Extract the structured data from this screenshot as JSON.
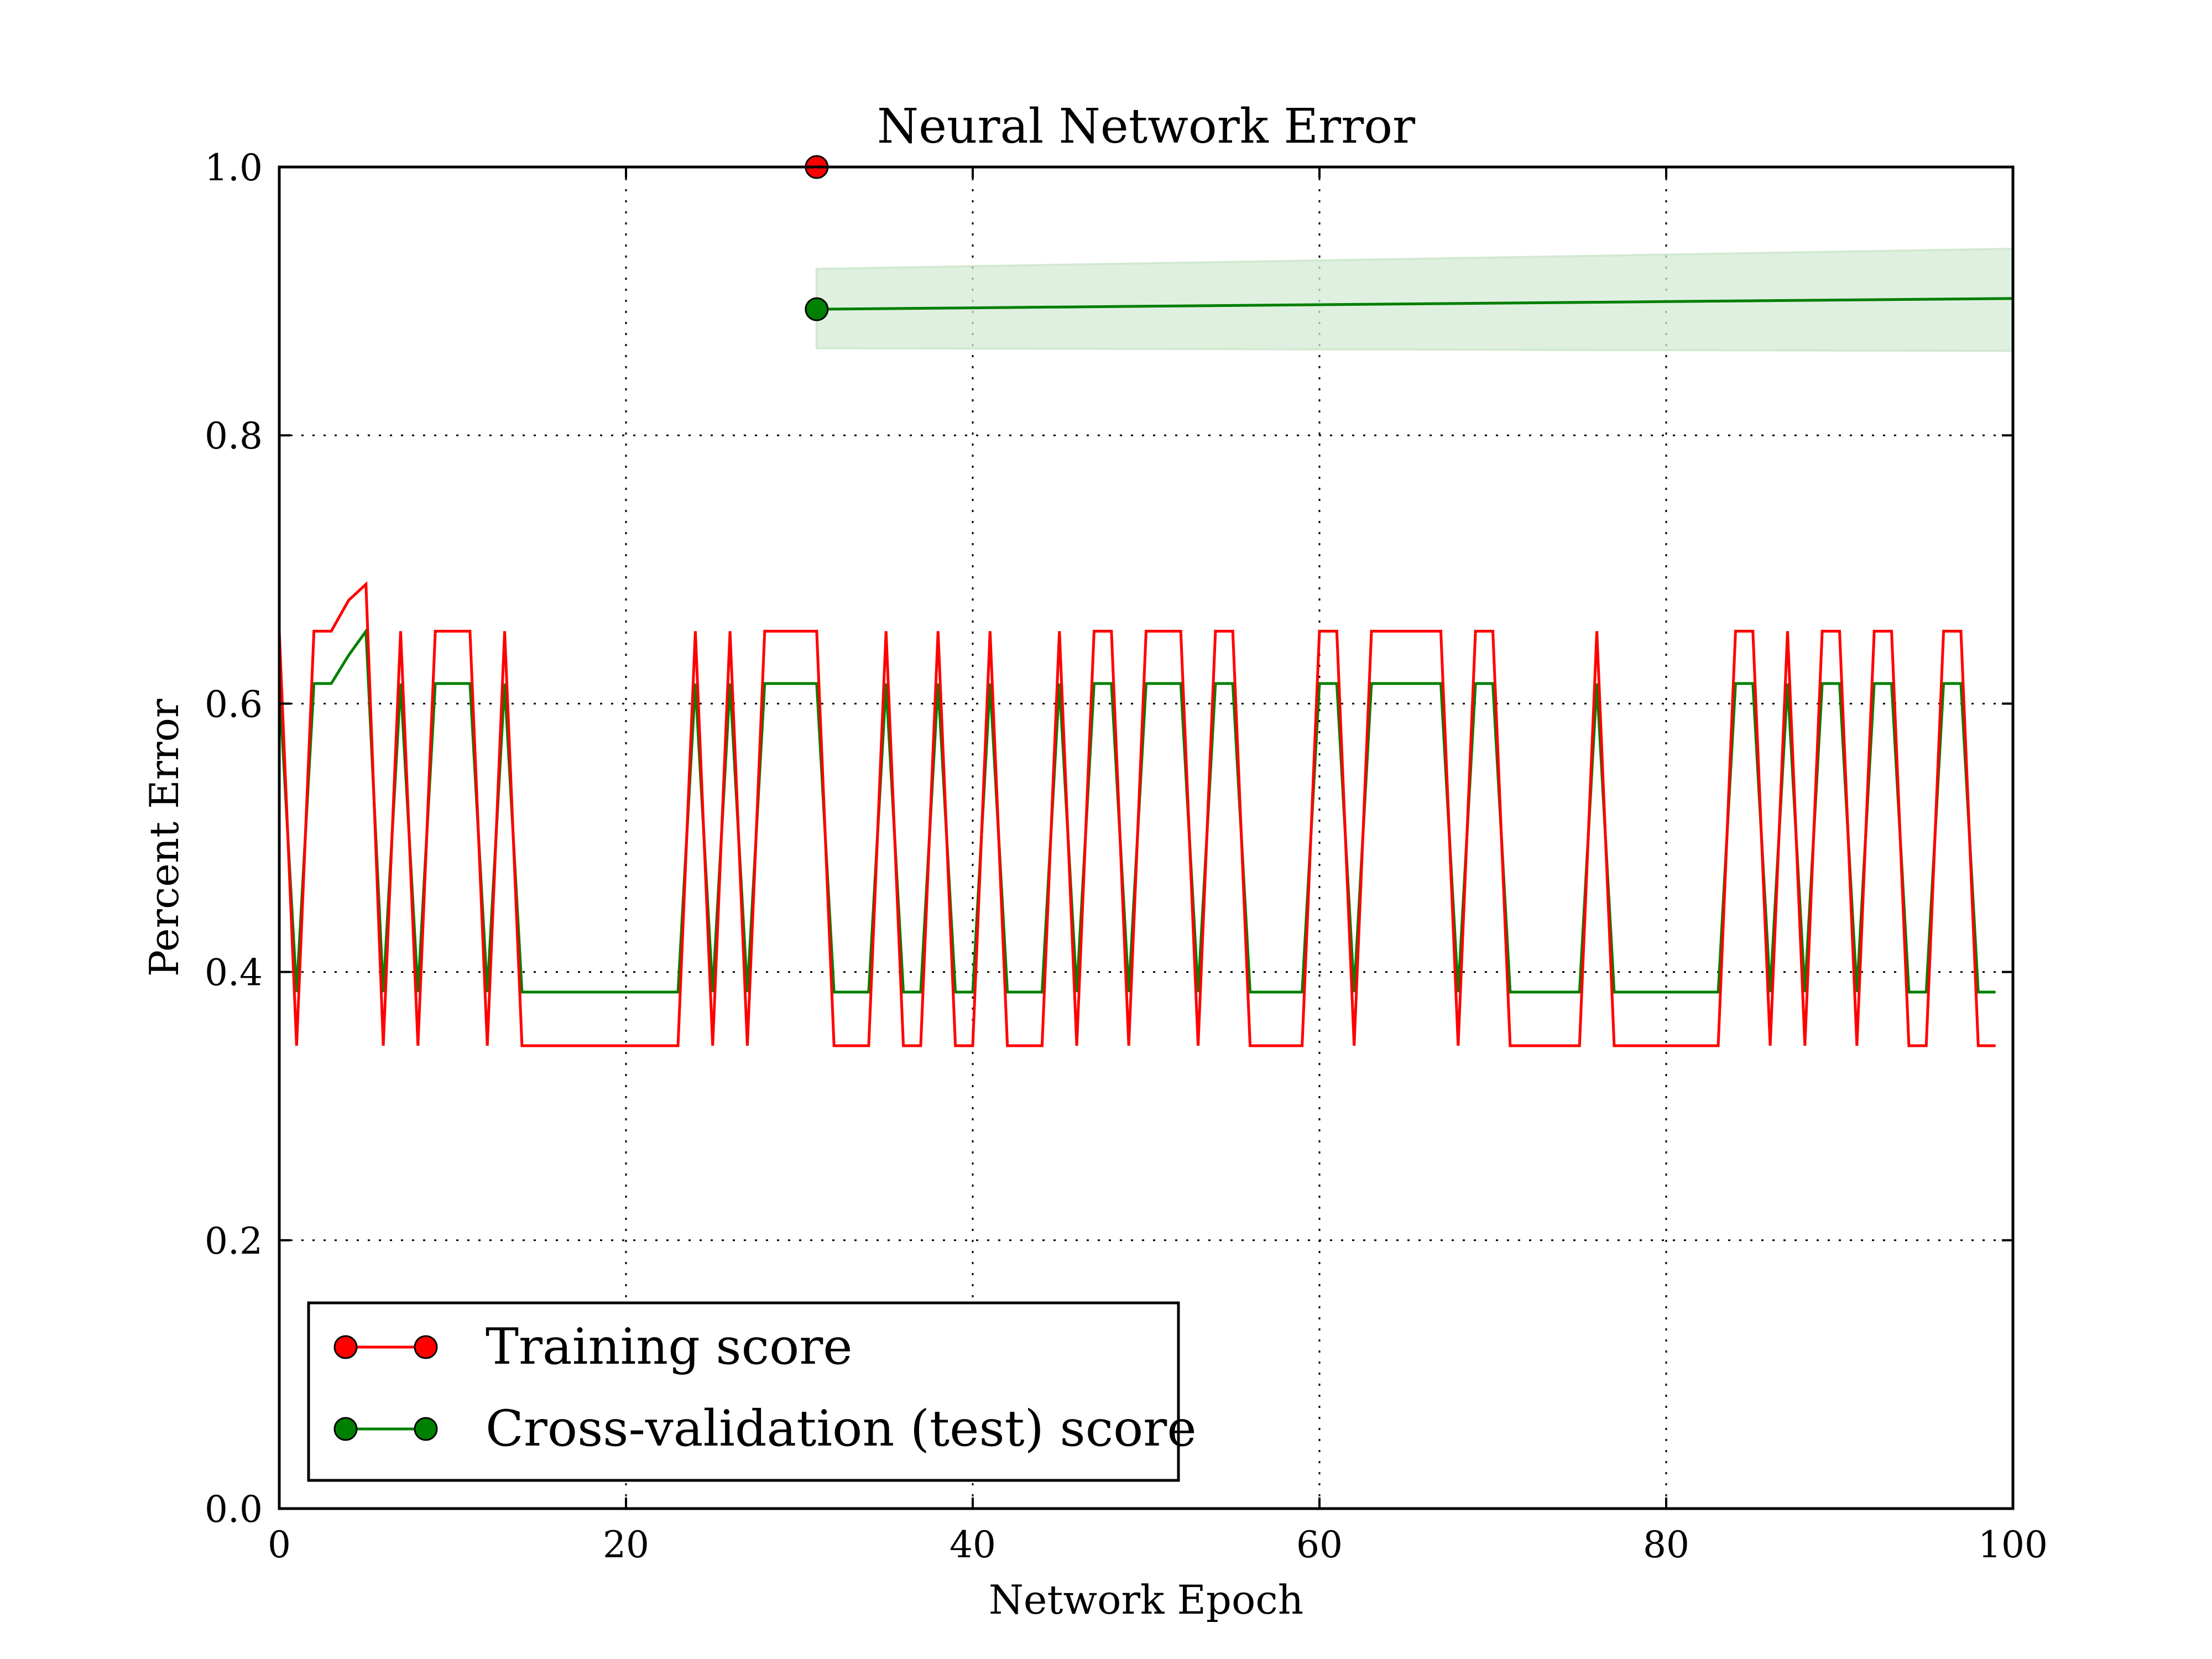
{
  "chart_data": {
    "type": "line",
    "title": "Neural Network Error",
    "xlabel": "Network Epoch",
    "ylabel": "Percent Error",
    "xlim": [
      0,
      100
    ],
    "ylim": [
      0.0,
      1.0
    ],
    "x_ticks": [
      0,
      20,
      40,
      60,
      80,
      100
    ],
    "x_tick_labels": [
      "0",
      "20",
      "40",
      "60",
      "80",
      "100"
    ],
    "y_ticks": [
      0.0,
      0.2,
      0.4,
      0.6,
      0.8,
      1.0
    ],
    "y_tick_labels": [
      "0.0",
      "0.2",
      "0.4",
      "0.6",
      "0.8",
      "1.0"
    ],
    "grid": true,
    "legend_position": "lower-left",
    "series": [
      {
        "name": "Training score",
        "color": "#ff0000",
        "marker_color": "#ff0000",
        "x": [
          0,
          1,
          2,
          3,
          4,
          5,
          6,
          7,
          8,
          9,
          10,
          11,
          12,
          13,
          14,
          15,
          16,
          17,
          18,
          19,
          20,
          21,
          22,
          23,
          24,
          25,
          26,
          27,
          28,
          29,
          30,
          31,
          32,
          33,
          34,
          35,
          36,
          37,
          38,
          39,
          40,
          41,
          42,
          43,
          44,
          45,
          46,
          47,
          48,
          49,
          50,
          51,
          52,
          53,
          54,
          55,
          56,
          57,
          58,
          59,
          60,
          61,
          62,
          63,
          64,
          65,
          66,
          67,
          68,
          69,
          70,
          71,
          72,
          73,
          74,
          75,
          76,
          77,
          78,
          79,
          80,
          81,
          82,
          83,
          84,
          85,
          86,
          87,
          88,
          89,
          90,
          91,
          92,
          93,
          94,
          95,
          96,
          97,
          98,
          99
        ],
        "values": [
          0.654,
          0.345,
          0.654,
          0.654,
          0.677,
          0.689,
          0.345,
          0.654,
          0.345,
          0.654,
          0.654,
          0.654,
          0.345,
          0.654,
          0.345,
          0.345,
          0.345,
          0.345,
          0.345,
          0.345,
          0.345,
          0.345,
          0.345,
          0.345,
          0.654,
          0.345,
          0.654,
          0.345,
          0.654,
          0.654,
          0.654,
          0.654,
          0.345,
          0.345,
          0.345,
          0.654,
          0.345,
          0.345,
          0.654,
          0.345,
          0.345,
          0.654,
          0.345,
          0.345,
          0.345,
          0.654,
          0.345,
          0.654,
          0.654,
          0.345,
          0.654,
          0.654,
          0.654,
          0.345,
          0.654,
          0.654,
          0.345,
          0.345,
          0.345,
          0.345,
          0.654,
          0.654,
          0.345,
          0.654,
          0.654,
          0.654,
          0.654,
          0.654,
          0.345,
          0.654,
          0.654,
          0.345,
          0.345,
          0.345,
          0.345,
          0.345,
          0.654,
          0.345,
          0.345,
          0.345,
          0.345,
          0.345,
          0.345,
          0.345,
          0.654,
          0.654,
          0.345,
          0.654,
          0.345,
          0.654,
          0.654,
          0.345,
          0.654,
          0.654,
          0.345,
          0.345,
          0.654,
          0.654,
          0.345,
          0.345
        ],
        "highlight_point": {
          "x": 31,
          "y": 1.0
        }
      },
      {
        "name": "Cross-validation (test) score",
        "color": "#007f00",
        "marker_color": "#008000",
        "x": [
          0,
          1,
          2,
          3,
          4,
          5,
          6,
          7,
          8,
          9,
          10,
          11,
          12,
          13,
          14,
          15,
          16,
          17,
          18,
          19,
          20,
          21,
          22,
          23,
          24,
          25,
          26,
          27,
          28,
          29,
          30,
          31,
          32,
          33,
          34,
          35,
          36,
          37,
          38,
          39,
          40,
          41,
          42,
          43,
          44,
          45,
          46,
          47,
          48,
          49,
          50,
          51,
          52,
          53,
          54,
          55,
          56,
          57,
          58,
          59,
          60,
          61,
          62,
          63,
          64,
          65,
          66,
          67,
          68,
          69,
          70,
          71,
          72,
          73,
          74,
          75,
          76,
          77,
          78,
          79,
          80,
          81,
          82,
          83,
          84,
          85,
          86,
          87,
          88,
          89,
          90,
          91,
          92,
          93,
          94,
          95,
          96,
          97,
          98,
          99
        ],
        "values": [
          0.615,
          0.385,
          0.615,
          0.615,
          0.636,
          0.654,
          0.385,
          0.615,
          0.385,
          0.615,
          0.615,
          0.615,
          0.385,
          0.615,
          0.385,
          0.385,
          0.385,
          0.385,
          0.385,
          0.385,
          0.385,
          0.385,
          0.385,
          0.385,
          0.615,
          0.385,
          0.615,
          0.385,
          0.615,
          0.615,
          0.615,
          0.615,
          0.385,
          0.385,
          0.385,
          0.615,
          0.385,
          0.385,
          0.615,
          0.385,
          0.385,
          0.615,
          0.385,
          0.385,
          0.385,
          0.615,
          0.385,
          0.615,
          0.615,
          0.385,
          0.615,
          0.615,
          0.615,
          0.385,
          0.615,
          0.615,
          0.385,
          0.385,
          0.385,
          0.385,
          0.615,
          0.615,
          0.385,
          0.615,
          0.615,
          0.615,
          0.615,
          0.615,
          0.385,
          0.615,
          0.615,
          0.385,
          0.385,
          0.385,
          0.385,
          0.385,
          0.615,
          0.385,
          0.385,
          0.385,
          0.385,
          0.385,
          0.385,
          0.385,
          0.615,
          0.615,
          0.385,
          0.615,
          0.385,
          0.615,
          0.615,
          0.385,
          0.615,
          0.615,
          0.385,
          0.385,
          0.615,
          0.615,
          0.385,
          0.385
        ],
        "highlight_point": {
          "x": 31,
          "y": 0.894
        },
        "trend": {
          "x": [
            31,
            100
          ],
          "y": [
            0.894,
            0.902
          ]
        },
        "band": {
          "x": [
            31,
            100
          ],
          "lower": [
            0.865,
            0.863
          ],
          "upper": [
            0.924,
            0.939
          ],
          "color": "#d6ecd6"
        }
      }
    ]
  }
}
